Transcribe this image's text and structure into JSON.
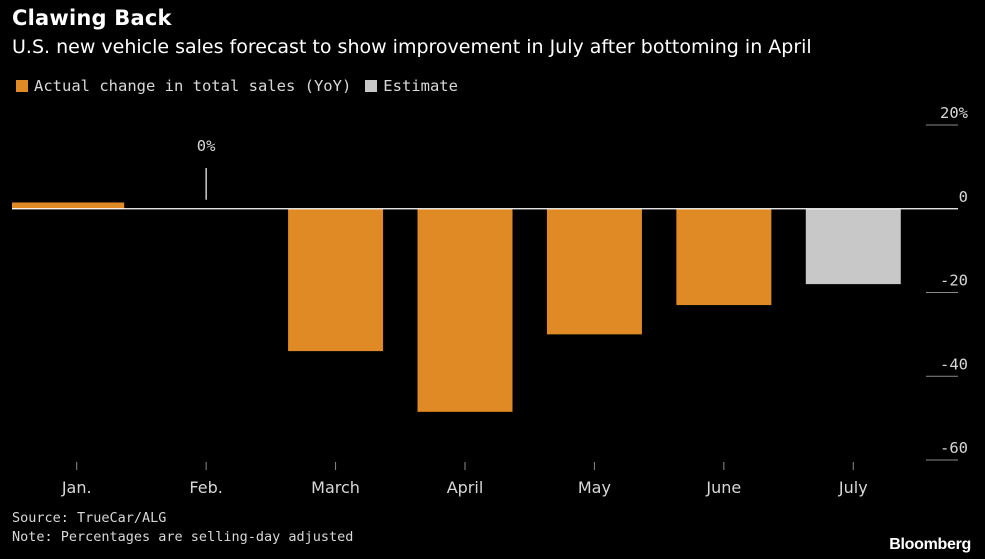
{
  "title": "Clawing Back",
  "subtitle": "U.S. new vehicle sales forecast to show improvement in July after bottoming in April",
  "legend": {
    "actual_label": "Actual change in total sales (YoY)",
    "estimate_label": "Estimate"
  },
  "colors": {
    "actual": "#e08a25",
    "estimate": "#c8c8c8",
    "background": "#000000"
  },
  "chart_data": {
    "type": "bar",
    "categories": [
      "Jan.",
      "Feb.",
      "March",
      "April",
      "May",
      "June",
      "July"
    ],
    "values": [
      1.5,
      0,
      -34,
      -48.5,
      -30,
      -23,
      -18
    ],
    "kinds": [
      "actual",
      "actual",
      "actual",
      "actual",
      "actual",
      "actual",
      "estimate"
    ],
    "ylim": [
      -60,
      20
    ],
    "y_ticks": [
      20,
      0,
      -20,
      -40,
      -60
    ],
    "y_tick_labels": [
      "20%",
      "0",
      "-20",
      "-40",
      "-60"
    ],
    "annotation": {
      "category": "Feb.",
      "text": "0%"
    },
    "legend_position": "top-left"
  },
  "source": "Source: TrueCar/ALG",
  "note": "Note: Percentages are selling-day adjusted",
  "brand": "Bloomberg"
}
